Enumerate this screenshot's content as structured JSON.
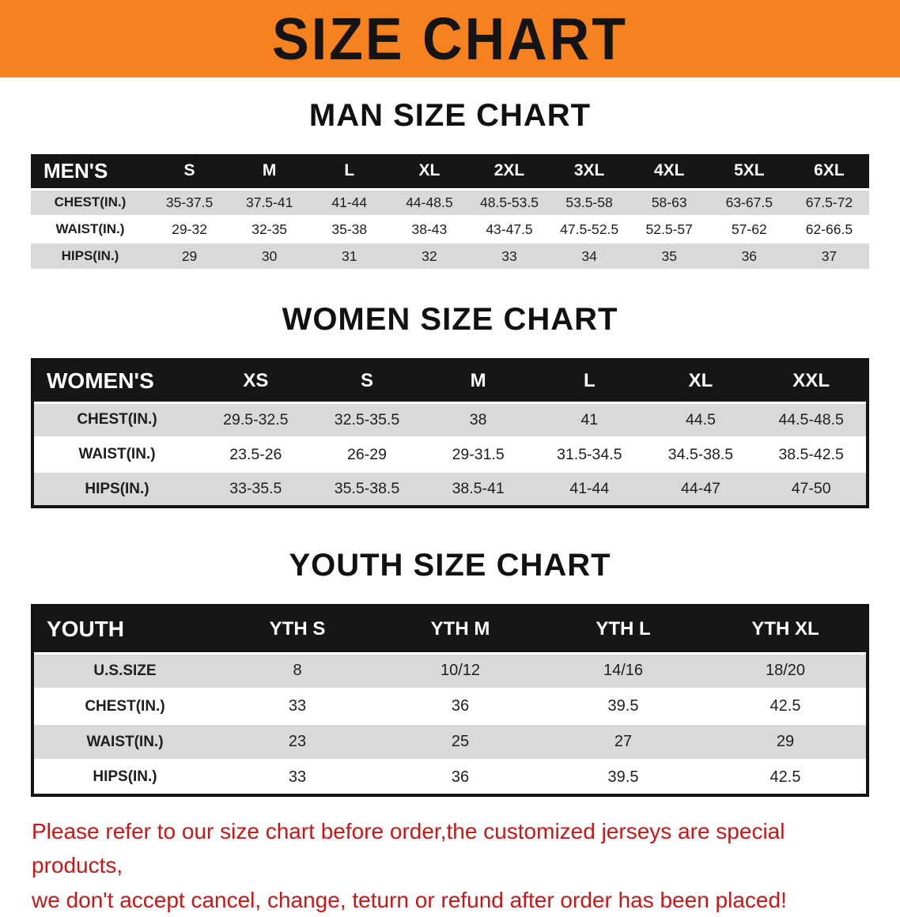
{
  "banner": {
    "title": "SIZE CHART"
  },
  "colors": {
    "banner_bg": "#f5821f",
    "table_header_bg": "#161616",
    "row_alt_bg": "#d9d9d9",
    "disclaimer_red": "#cb1616"
  },
  "men": {
    "heading": "MAN SIZE CHART",
    "header": [
      "MEN'S",
      "S",
      "M",
      "L",
      "XL",
      "2XL",
      "3XL",
      "4XL",
      "5XL",
      "6XL"
    ],
    "rows": [
      [
        "CHEST(IN.)",
        "35-37.5",
        "37.5-41",
        "41-44",
        "44-48.5",
        "48.5-53.5",
        "53.5-58",
        "58-63",
        "63-67.5",
        "67.5-72"
      ],
      [
        "WAIST(IN.)",
        "29-32",
        "32-35",
        "35-38",
        "38-43",
        "43-47.5",
        "47.5-52.5",
        "52.5-57",
        "57-62",
        "62-66.5"
      ],
      [
        "HIPS(IN.)",
        "29",
        "30",
        "31",
        "32",
        "33",
        "34",
        "35",
        "36",
        "37"
      ]
    ]
  },
  "women": {
    "heading": "WOMEN SIZE CHART",
    "header": [
      "WOMEN'S",
      "XS",
      "S",
      "M",
      "L",
      "XL",
      "XXL"
    ],
    "rows": [
      [
        "CHEST(IN.)",
        "29.5-32.5",
        "32.5-35.5",
        "38",
        "41",
        "44.5",
        "44.5-48.5"
      ],
      [
        "WAIST(IN.)",
        "23.5-26",
        "26-29",
        "29-31.5",
        "31.5-34.5",
        "34.5-38.5",
        "38.5-42.5"
      ],
      [
        "HIPS(IN.)",
        "33-35.5",
        "35.5-38.5",
        "38.5-41",
        "41-44",
        "44-47",
        "47-50"
      ]
    ]
  },
  "youth": {
    "heading": "YOUTH SIZE CHART",
    "header": [
      "YOUTH",
      "YTH S",
      "YTH M",
      "YTH L",
      "YTH XL"
    ],
    "rows": [
      [
        "U.S.SIZE",
        "8",
        "10/12",
        "14/16",
        "18/20"
      ],
      [
        "CHEST(IN.)",
        "33",
        "36",
        "39.5",
        "42.5"
      ],
      [
        "WAIST(IN.)",
        "23",
        "25",
        "27",
        "29"
      ],
      [
        "HIPS(IN.)",
        "33",
        "36",
        "39.5",
        "42.5"
      ]
    ]
  },
  "disclaimer": {
    "line1": "Please refer to our size chart before order,the customized jerseys are special products,",
    "line2": "we don't accept cancel, change, teturn or refund after order has been placed!"
  }
}
